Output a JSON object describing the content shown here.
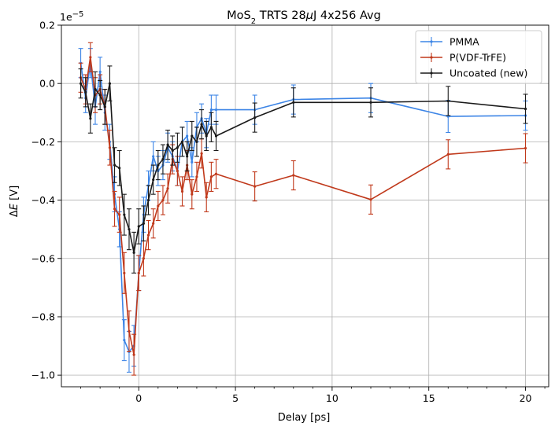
{
  "chart_data": {
    "type": "line",
    "title_main": "MoS",
    "title_sub": "2",
    "title_rest": " TRTS 28",
    "title_mu": "μ",
    "title_end": "J 4x256 Avg",
    "xlabel": "Delay [ps]",
    "ylabel_delta": "Δ",
    "ylabel_var": "E",
    "ylabel_unit": " [V]",
    "offset_base": "1e",
    "offset_exp": "−5",
    "xlim": [
      -4.0,
      21.2
    ],
    "ylim": [
      -1.04,
      0.2
    ],
    "x_ticks": [
      0,
      5,
      10,
      15,
      20
    ],
    "x_tick_labels": [
      "0",
      "5",
      "10",
      "15",
      "20"
    ],
    "y_ticks": [
      -1.0,
      -0.8,
      -0.6,
      -0.4,
      -0.2,
      0.0,
      0.2
    ],
    "y_tick_labels": [
      "−1.0",
      "−0.8",
      "−0.6",
      "−0.4",
      "−0.2",
      "0.0",
      "0.2"
    ],
    "grid": true,
    "legend_position": "top-right",
    "series": [
      {
        "name": "PMMA",
        "color": "#3d85e6",
        "x": [
          -3.0,
          -2.75,
          -2.5,
          -2.25,
          -2.0,
          -1.75,
          -1.5,
          -1.25,
          -1.0,
          -0.75,
          -0.5,
          -0.25,
          0.0,
          0.25,
          0.5,
          0.75,
          1.0,
          1.25,
          1.5,
          1.75,
          2.0,
          2.25,
          2.5,
          2.75,
          3.0,
          3.25,
          3.5,
          3.75,
          4.0,
          6.0,
          8.0,
          12.0,
          16.0,
          20.0
        ],
        "y": [
          0.07,
          -0.05,
          0.07,
          -0.08,
          0.04,
          -0.1,
          -0.2,
          -0.38,
          -0.5,
          -0.88,
          -0.92,
          -0.9,
          -0.65,
          -0.45,
          -0.35,
          -0.25,
          -0.3,
          -0.28,
          -0.22,
          -0.25,
          -0.3,
          -0.2,
          -0.18,
          -0.27,
          -0.15,
          -0.12,
          -0.17,
          -0.09,
          -0.09,
          -0.09,
          -0.055,
          -0.05,
          -0.113,
          -0.11
        ],
        "err": [
          0.05,
          0.05,
          0.05,
          0.06,
          0.05,
          0.06,
          0.06,
          0.06,
          0.06,
          0.07,
          0.07,
          0.07,
          0.06,
          0.06,
          0.05,
          0.05,
          0.05,
          0.05,
          0.05,
          0.05,
          0.05,
          0.05,
          0.05,
          0.05,
          0.05,
          0.05,
          0.05,
          0.05,
          0.05,
          0.05,
          0.05,
          0.05,
          0.055,
          0.05
        ]
      },
      {
        "name": "P(VDF-TrFE)",
        "color": "#c0391b",
        "x": [
          -3.0,
          -2.75,
          -2.5,
          -2.25,
          -2.0,
          -1.75,
          -1.5,
          -1.25,
          -1.0,
          -0.75,
          -0.5,
          -0.25,
          0.0,
          0.25,
          0.5,
          0.75,
          1.0,
          1.25,
          1.5,
          1.75,
          2.0,
          2.25,
          2.5,
          2.75,
          3.0,
          3.25,
          3.5,
          3.75,
          4.0,
          6.0,
          8.0,
          12.0,
          16.0,
          20.0
        ],
        "y": [
          0.02,
          -0.02,
          0.09,
          -0.04,
          -0.02,
          -0.08,
          -0.22,
          -0.43,
          -0.45,
          -0.65,
          -0.85,
          -0.93,
          -0.65,
          -0.6,
          -0.52,
          -0.48,
          -0.42,
          -0.4,
          -0.36,
          -0.26,
          -0.3,
          -0.37,
          -0.28,
          -0.38,
          -0.32,
          -0.24,
          -0.39,
          -0.32,
          -0.31,
          -0.353,
          -0.315,
          -0.398,
          -0.243,
          -0.222
        ]
      },
      {
        "name": "Uncoated (new)",
        "color": "#1a1a1a",
        "x": [
          -3.0,
          -2.75,
          -2.5,
          -2.25,
          -2.0,
          -1.75,
          -1.5,
          -1.25,
          -1.0,
          -0.75,
          -0.5,
          -0.25,
          0.0,
          0.25,
          0.5,
          0.75,
          1.0,
          1.25,
          1.5,
          1.75,
          2.0,
          2.25,
          2.5,
          2.75,
          3.0,
          3.25,
          3.5,
          3.75,
          4.0,
          6.0,
          8.0,
          12.0,
          16.0,
          20.0
        ],
        "y": [
          0.0,
          -0.03,
          -0.12,
          -0.02,
          -0.04,
          -0.08,
          0.0,
          -0.28,
          -0.29,
          -0.45,
          -0.5,
          -0.58,
          -0.49,
          -0.48,
          -0.4,
          -0.33,
          -0.28,
          -0.26,
          -0.21,
          -0.23,
          -0.22,
          -0.2,
          -0.25,
          -0.18,
          -0.2,
          -0.14,
          -0.18,
          -0.15,
          -0.18,
          -0.117,
          -0.065,
          -0.065,
          -0.06,
          -0.087
        ]
      }
    ]
  }
}
